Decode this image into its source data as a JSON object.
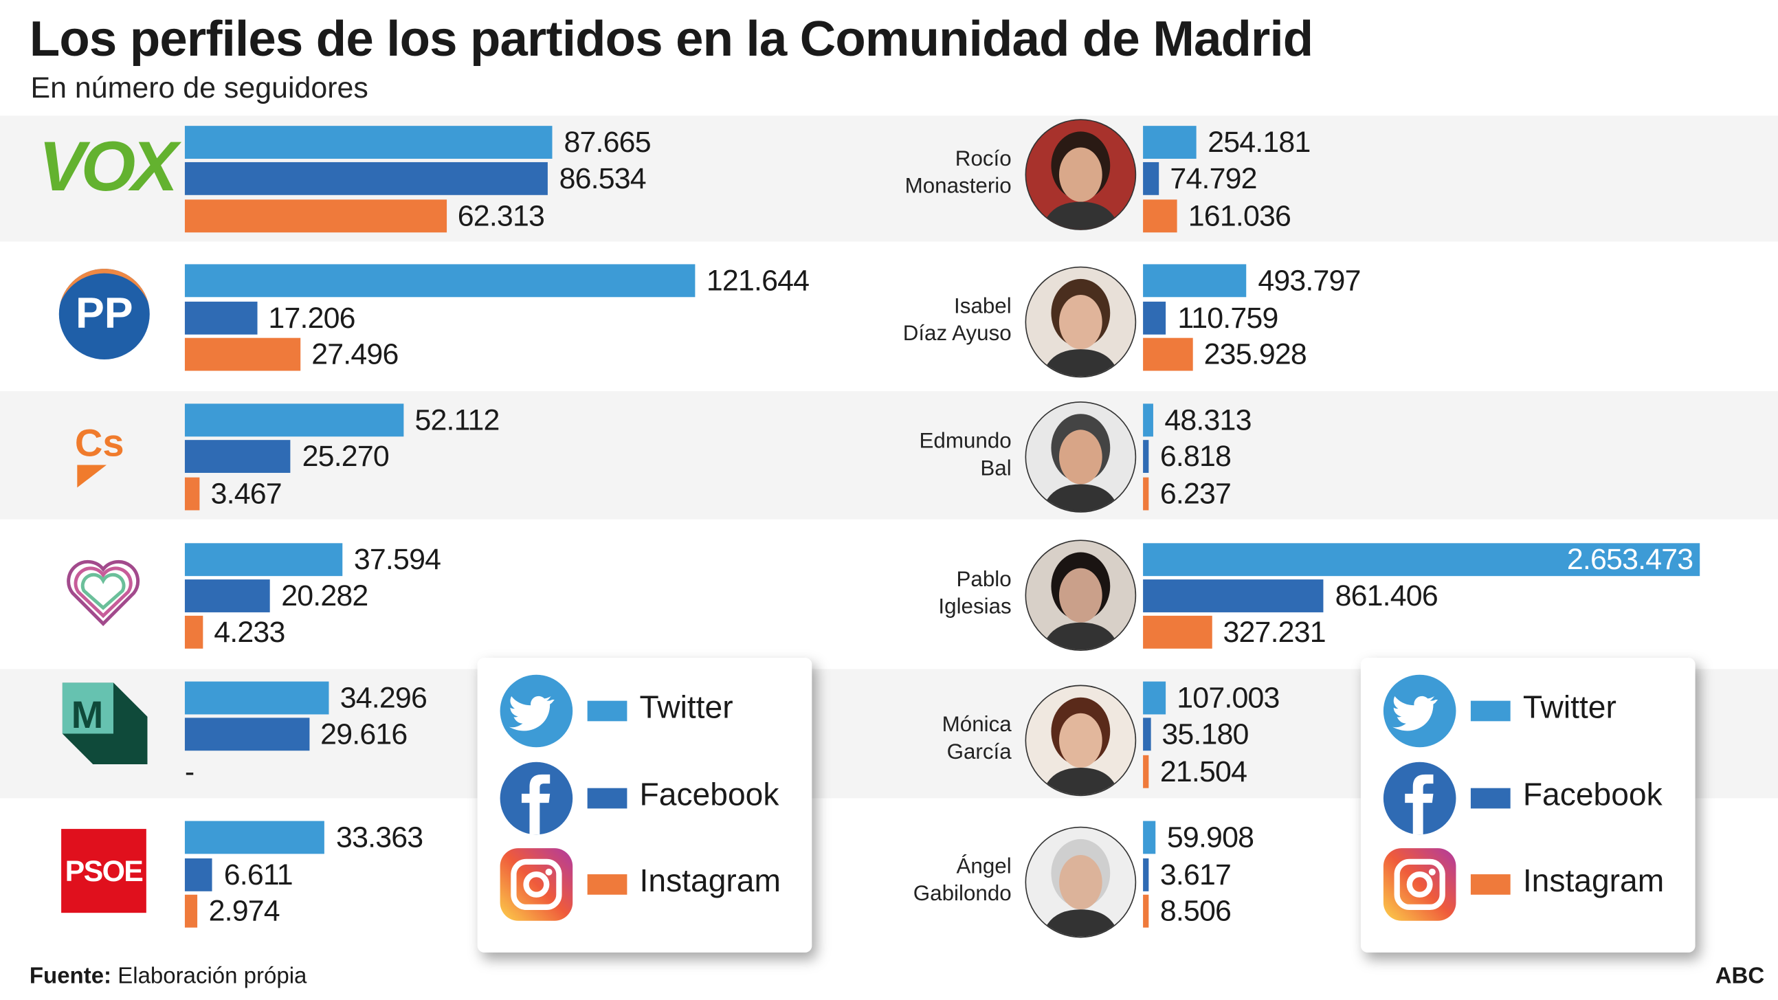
{
  "header": {
    "title": "Los perfiles de los partidos en la Comunidad de Madrid",
    "subtitle": "En número de seguidores"
  },
  "footer": {
    "source_label": "Fuente:",
    "source_text": "Elaboración própia",
    "brand": "ABC"
  },
  "colors": {
    "twitter": "#3d9bd6",
    "facebook": "#2f6bb4",
    "instagram": "#ef7a3b",
    "band": "#f4f4f4"
  },
  "legend": {
    "items": [
      {
        "label": "Twitter",
        "icon": "twitter-bird-icon"
      },
      {
        "label": "Facebook",
        "icon": "facebook-f-icon"
      },
      {
        "label": "Instagram",
        "icon": "instagram-camera-icon"
      }
    ]
  },
  "chart_data": [
    {
      "type": "bar",
      "orientation": "horizontal",
      "title": "Partidos",
      "categories": [
        "VOX",
        "PP",
        "Cs",
        "Podemos",
        "Más Madrid",
        "PSOE"
      ],
      "series": [
        {
          "name": "Twitter",
          "values": [
            87665,
            121644,
            52112,
            37594,
            34296,
            33363
          ],
          "labels": [
            "87.665",
            "121.644",
            "52.112",
            "37.594",
            "34.296",
            "33.363"
          ]
        },
        {
          "name": "Facebook",
          "values": [
            86534,
            17206,
            25270,
            20282,
            29616,
            6611
          ],
          "labels": [
            "86.534",
            "17.206",
            "25.270",
            "20.282",
            "29.616",
            "6.611"
          ]
        },
        {
          "name": "Instagram",
          "values": [
            62313,
            27496,
            3467,
            4233,
            null,
            2974
          ],
          "labels": [
            "62.313",
            "27.496",
            "3.467",
            "4.233",
            "-",
            "2.974"
          ]
        }
      ],
      "logo_texts": [
        "VOX",
        "PP",
        "Cs",
        "",
        "M",
        "PSOE"
      ]
    },
    {
      "type": "bar",
      "orientation": "horizontal",
      "categories": [
        "Rocío Monasterio",
        "Isabel Díaz Ayuso",
        "Edmundo Bal",
        "Pablo Iglesias",
        "Mónica García",
        "Ángel Gabilondo"
      ],
      "name_lines": [
        [
          "Rocío",
          "Monasterio"
        ],
        [
          "Isabel",
          "Díaz Ayuso"
        ],
        [
          "Edmundo",
          "Bal"
        ],
        [
          "Pablo",
          "Iglesias"
        ],
        [
          "Mónica",
          "García"
        ],
        [
          "Ángel",
          "Gabilondo"
        ]
      ],
      "series": [
        {
          "name": "Twitter",
          "values": [
            254181,
            493797,
            48313,
            2653473,
            107003,
            59908
          ],
          "labels": [
            "254.181",
            "493.797",
            "48.313",
            "2.653.473",
            "107.003",
            "59.908"
          ]
        },
        {
          "name": "Facebook",
          "values": [
            74792,
            110759,
            6818,
            861406,
            35180,
            3617
          ],
          "labels": [
            "74.792",
            "110.759",
            "6.818",
            "861.406",
            "35.180",
            "3.617"
          ]
        },
        {
          "name": "Instagram",
          "values": [
            161036,
            235928,
            6237,
            327231,
            21504,
            8506
          ],
          "labels": [
            "161.036",
            "235.928",
            "6.237",
            "327.231",
            "21.504",
            "8.506"
          ]
        }
      ]
    }
  ]
}
